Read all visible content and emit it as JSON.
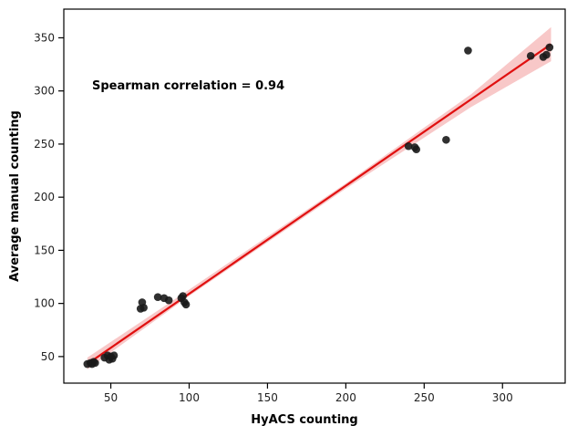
{
  "chart_data": {
    "type": "scatter",
    "title": "",
    "xlabel": "HyACS counting",
    "ylabel": "Average manual counting",
    "xlim": [
      20,
      340
    ],
    "ylim": [
      25,
      377
    ],
    "x_ticks": [
      50,
      100,
      150,
      200,
      250,
      300
    ],
    "y_ticks": [
      50,
      100,
      150,
      200,
      250,
      300,
      350
    ],
    "grid": false,
    "annotation": "Spearman correlation = 0.94",
    "points": [
      {
        "x": 35,
        "y": 43
      },
      {
        "x": 37,
        "y": 44
      },
      {
        "x": 38,
        "y": 43
      },
      {
        "x": 39,
        "y": 45
      },
      {
        "x": 40,
        "y": 44
      },
      {
        "x": 46,
        "y": 49
      },
      {
        "x": 48,
        "y": 51
      },
      {
        "x": 49,
        "y": 47
      },
      {
        "x": 50,
        "y": 50
      },
      {
        "x": 51,
        "y": 48
      },
      {
        "x": 52,
        "y": 51
      },
      {
        "x": 69,
        "y": 95
      },
      {
        "x": 70,
        "y": 101
      },
      {
        "x": 71,
        "y": 96
      },
      {
        "x": 80,
        "y": 106
      },
      {
        "x": 84,
        "y": 105
      },
      {
        "x": 87,
        "y": 103
      },
      {
        "x": 95,
        "y": 105
      },
      {
        "x": 96,
        "y": 107
      },
      {
        "x": 97,
        "y": 101
      },
      {
        "x": 98,
        "y": 99
      },
      {
        "x": 240,
        "y": 248
      },
      {
        "x": 244,
        "y": 247
      },
      {
        "x": 245,
        "y": 245
      },
      {
        "x": 264,
        "y": 254
      },
      {
        "x": 278,
        "y": 338
      },
      {
        "x": 318,
        "y": 333
      },
      {
        "x": 326,
        "y": 332
      },
      {
        "x": 328,
        "y": 334
      },
      {
        "x": 330,
        "y": 341
      }
    ],
    "regression": {
      "x_start": 35,
      "x_end": 331,
      "y_start": 43,
      "y_end": 344
    },
    "confidence_band": {
      "x": [
        35,
        100,
        200,
        280,
        331
      ],
      "lower": [
        38,
        107,
        208,
        285,
        328
      ],
      "upper": [
        49,
        113,
        213,
        297,
        360
      ]
    },
    "point_color": "#1a1a1a",
    "line_color": "#e01010",
    "band_color": "#f4a3a3"
  }
}
